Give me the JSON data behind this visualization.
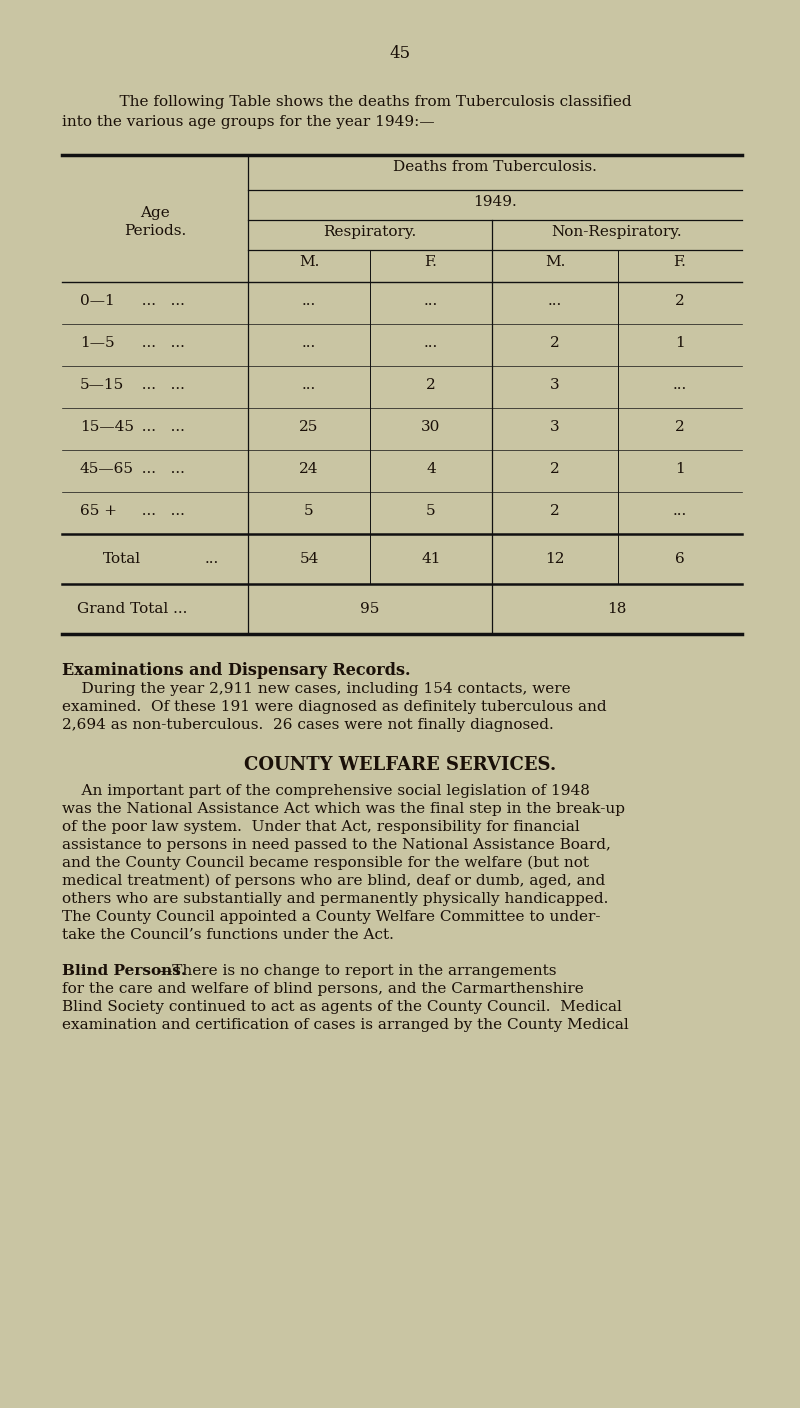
{
  "page_number": "45",
  "bg_color": "#c9c5a3",
  "intro_text_line1": "    The following Table shows the deaths from Tuberculosis classified",
  "intro_text_line2": "into the various age groups for the year 1949:—",
  "table_header1": "Deaths from Tuberculosis.",
  "table_header2": "1949.",
  "table_header3a": "Respiratory.",
  "table_header3b": "Non-Respiratory.",
  "col_headers": [
    "M.",
    "F.",
    "M.",
    "F."
  ],
  "age_rows": [
    {
      "age": "0—1",
      "dots1": "   ...",
      "resp_m": "...",
      "resp_f": "...",
      "nonresp_m": "...",
      "nonresp_f": "2"
    },
    {
      "age": "1—5",
      "dots1": "   ...",
      "resp_m": "...",
      "resp_f": "...",
      "nonresp_m": "2",
      "nonresp_f": "1"
    },
    {
      "age": "5—15",
      "dots1": "   ...",
      "resp_m": "...",
      "resp_f": "2",
      "nonresp_m": "3",
      "nonresp_f": "..."
    },
    {
      "age": "15—45",
      "dots1": "   ...",
      "resp_m": "25",
      "resp_f": "30",
      "nonresp_m": "3",
      "nonresp_f": "2"
    },
    {
      "age": "45—65",
      "dots1": "   ...",
      "resp_m": "24",
      "resp_f": "4",
      "nonresp_m": "2",
      "nonresp_f": "1"
    },
    {
      "age": "65 +",
      "dots1": "   ...",
      "resp_m": "5",
      "resp_f": "5",
      "nonresp_m": "2",
      "nonresp_f": "..."
    }
  ],
  "total_label": "Total",
  "total_dots": "   ...",
  "total_resp_m": "54",
  "total_resp_f": "41",
  "total_nonresp_m": "12",
  "total_nonresp_f": "6",
  "grand_total_label": "Grand Total ...",
  "grand_total_resp": "95",
  "grand_total_nonresp": "18",
  "s2_title": "Examinations and Dispensary Records.",
  "s2_indent": "    During the year 2,911 new cases, including 154 contacts, were",
  "s2_line2": "examined.  Of these 191 were diagnosed as definitely tuberculous and",
  "s2_line3": "2,694 as non-tuberculous.  26 cases were not finally diagnosed.",
  "s3_title": "COUNTY WELFARE SERVICES.",
  "s3_indent": "    An important part of the comprehensive social legislation of 1948",
  "s3_line2": "was the National Assistance Act which was the final step in the break-up",
  "s3_line3": "of the poor law system.  Under that Act, responsibility for financial",
  "s3_line4": "assistance to persons in need passed to the National Assistance Board,",
  "s3_line5": "and the County Council became responsible for the welfare (but not",
  "s3_line6": "medical treatment) of persons who are blind, deaf or dumb, aged, and",
  "s3_line7": "others who are substantially and permanently physically handicapped.",
  "s3_line8": "The County Council appointed a County Welfare Committee to under-",
  "s3_line9": "take the Council’s functions under the Act.",
  "s4_title": "Blind Persons.",
  "s4_rest": "—There is no change to report in the arrangements",
  "s4_line2": "for the care and welfare of blind persons, and the Carmarthenshire",
  "s4_line3": "Blind Society continued to act as agents of the County Council.  Medical",
  "s4_line4": "examination and certification of cases is arranged by the County Medical"
}
